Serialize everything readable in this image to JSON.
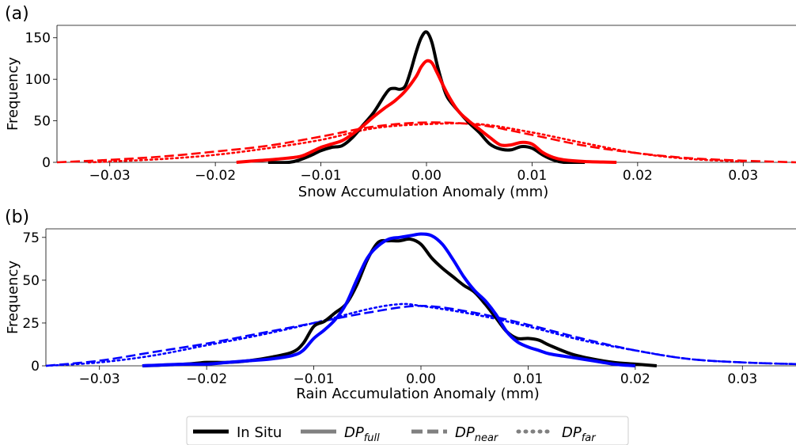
{
  "chart_data": [
    {
      "type": "line",
      "panel_label": "(a)",
      "xlabel": "Snow Accumulation Anomaly (mm)",
      "ylabel": "Frequency",
      "xlim": [
        -0.035,
        0.035
      ],
      "ylim": [
        0,
        165
      ],
      "xticks": [
        -0.03,
        -0.02,
        -0.01,
        0.0,
        0.01,
        0.02,
        0.03
      ],
      "xtick_labels": [
        "−0.03",
        "−0.02",
        "−0.01",
        "0.00",
        "0.01",
        "0.02",
        "0.03"
      ],
      "yticks": [
        0,
        50,
        100,
        150
      ],
      "ytick_labels": [
        "0",
        "50",
        "100",
        "150"
      ],
      "grid": false,
      "series": [
        {
          "name": "In Situ",
          "color": "#000000",
          "style": "solid",
          "x": [
            -0.015,
            -0.013,
            -0.012,
            -0.011,
            -0.01,
            -0.009,
            -0.008,
            -0.007,
            -0.006,
            -0.005,
            -0.004,
            -0.0035,
            -0.003,
            -0.0025,
            -0.002,
            -0.0015,
            -0.001,
            -0.0005,
            0.0,
            0.0005,
            0.001,
            0.0015,
            0.002,
            0.003,
            0.004,
            0.005,
            0.006,
            0.007,
            0.008,
            0.009,
            0.01,
            0.011,
            0.012,
            0.013,
            0.015
          ],
          "y": [
            0,
            0,
            3,
            8,
            14,
            18,
            20,
            30,
            45,
            60,
            80,
            88,
            89,
            88,
            92,
            110,
            132,
            150,
            157,
            145,
            118,
            95,
            78,
            62,
            48,
            36,
            22,
            16,
            15,
            19,
            17,
            9,
            3,
            0,
            0
          ]
        },
        {
          "name": "DPfull",
          "color": "#ff0000",
          "style": "solid",
          "x": [
            -0.018,
            -0.016,
            -0.014,
            -0.012,
            -0.011,
            -0.01,
            -0.009,
            -0.008,
            -0.007,
            -0.006,
            -0.005,
            -0.004,
            -0.003,
            -0.002,
            -0.001,
            -0.0005,
            0.0,
            0.0005,
            0.001,
            0.002,
            0.003,
            0.004,
            0.005,
            0.006,
            0.007,
            0.008,
            0.009,
            0.01,
            0.011,
            0.012,
            0.013,
            0.015,
            0.018
          ],
          "y": [
            0,
            2,
            4,
            7,
            12,
            18,
            22,
            26,
            34,
            44,
            55,
            65,
            74,
            86,
            103,
            115,
            122,
            120,
            108,
            82,
            62,
            50,
            40,
            30,
            21,
            21,
            24,
            22,
            12,
            6,
            3,
            1,
            0
          ]
        },
        {
          "name": "DPnear",
          "color": "#ff0000",
          "style": "dashed",
          "x": [
            -0.035,
            -0.03,
            -0.025,
            -0.02,
            -0.015,
            -0.01,
            -0.005,
            0.0,
            0.005,
            0.01,
            0.015,
            0.02,
            0.025,
            0.03,
            0.035
          ],
          "y": [
            0,
            3,
            7,
            13,
            20,
            31,
            43,
            48,
            45,
            33,
            20,
            11,
            5,
            2,
            0
          ]
        },
        {
          "name": "DPfar",
          "color": "#ff0000",
          "style": "dotted",
          "x": [
            -0.032,
            -0.03,
            -0.025,
            -0.02,
            -0.015,
            -0.01,
            -0.005,
            0.0,
            0.005,
            0.01,
            0.015,
            0.02,
            0.025,
            0.03
          ],
          "y": [
            0,
            1,
            4,
            9,
            17,
            27,
            41,
            46,
            46,
            36,
            23,
            11,
            4,
            1
          ]
        }
      ]
    },
    {
      "type": "line",
      "panel_label": "(b)",
      "xlabel": "Rain Accumulation Anomaly (mm)",
      "ylabel": "Frequency",
      "xlim": [
        -0.035,
        0.035
      ],
      "ylim": [
        0,
        80
      ],
      "xticks": [
        -0.03,
        -0.02,
        -0.01,
        0.0,
        0.01,
        0.02,
        0.03
      ],
      "xtick_labels": [
        "−0.03",
        "−0.02",
        "−0.01",
        "0.00",
        "0.01",
        "0.02",
        "0.03"
      ],
      "yticks": [
        0,
        25,
        50,
        75
      ],
      "ytick_labels": [
        "0",
        "25",
        "50",
        "75"
      ],
      "grid": false,
      "series": [
        {
          "name": "In Situ",
          "color": "#000000",
          "style": "solid",
          "x": [
            -0.026,
            -0.022,
            -0.02,
            -0.018,
            -0.016,
            -0.014,
            -0.012,
            -0.011,
            -0.01,
            -0.009,
            -0.008,
            -0.007,
            -0.006,
            -0.005,
            -0.004,
            -0.003,
            -0.002,
            -0.001,
            0.0,
            0.001,
            0.002,
            0.003,
            0.004,
            0.005,
            0.006,
            0.007,
            0.008,
            0.009,
            0.01,
            0.011,
            0.012,
            0.014,
            0.016,
            0.018,
            0.02,
            0.022
          ],
          "y": [
            0,
            1,
            2,
            2,
            3,
            5,
            8,
            13,
            23,
            26,
            31,
            36,
            47,
            62,
            72,
            73,
            73,
            74,
            71,
            63,
            57,
            52,
            47,
            43,
            36,
            28,
            20,
            16,
            16,
            15,
            12,
            7,
            4,
            2,
            1,
            0
          ]
        },
        {
          "name": "DPfull",
          "color": "#0000ff",
          "style": "solid",
          "x": [
            -0.026,
            -0.022,
            -0.02,
            -0.018,
            -0.016,
            -0.014,
            -0.012,
            -0.011,
            -0.01,
            -0.009,
            -0.008,
            -0.007,
            -0.006,
            -0.005,
            -0.004,
            -0.003,
            -0.002,
            -0.001,
            0.0,
            0.001,
            0.002,
            0.003,
            0.004,
            0.005,
            0.006,
            0.007,
            0.008,
            0.009,
            0.01,
            0.011,
            0.012,
            0.014,
            0.016,
            0.018,
            0.02
          ],
          "y": [
            0,
            1,
            1,
            2,
            3,
            4,
            6,
            9,
            16,
            21,
            27,
            36,
            50,
            63,
            70,
            74,
            75,
            76,
            77,
            76,
            71,
            62,
            52,
            44,
            38,
            30,
            20,
            14,
            11,
            9,
            7,
            5,
            3,
            1,
            0
          ]
        },
        {
          "name": "DPnear",
          "color": "#0000ff",
          "style": "dashed",
          "x": [
            -0.035,
            -0.03,
            -0.025,
            -0.02,
            -0.015,
            -0.01,
            -0.005,
            0.0,
            0.005,
            0.01,
            0.015,
            0.02,
            0.025,
            0.03,
            0.035
          ],
          "y": [
            0,
            3,
            8,
            13,
            19,
            25,
            31,
            35,
            31,
            24,
            16,
            9,
            4,
            2,
            1
          ]
        },
        {
          "name": "DPfar",
          "color": "#0000ff",
          "style": "dotted",
          "x": [
            -0.035,
            -0.03,
            -0.025,
            -0.02,
            -0.015,
            -0.01,
            -0.005,
            -0.002,
            0.0,
            0.005,
            0.01,
            0.015,
            0.02,
            0.025,
            0.03,
            0.035
          ],
          "y": [
            0,
            2,
            6,
            12,
            18,
            25,
            33,
            36,
            35,
            30,
            23,
            15,
            9,
            4,
            2,
            1
          ]
        }
      ]
    }
  ],
  "legend": {
    "placement": "bottom-center",
    "entries": [
      {
        "label": "In Situ",
        "color": "#000000",
        "style": "solid"
      },
      {
        "label": "DP",
        "sub": "full",
        "color": "#808080",
        "style": "solid"
      },
      {
        "label": "DP",
        "sub": "near",
        "color": "#808080",
        "style": "dashed"
      },
      {
        "label": "DP",
        "sub": "far",
        "color": "#808080",
        "style": "dotted"
      }
    ]
  }
}
